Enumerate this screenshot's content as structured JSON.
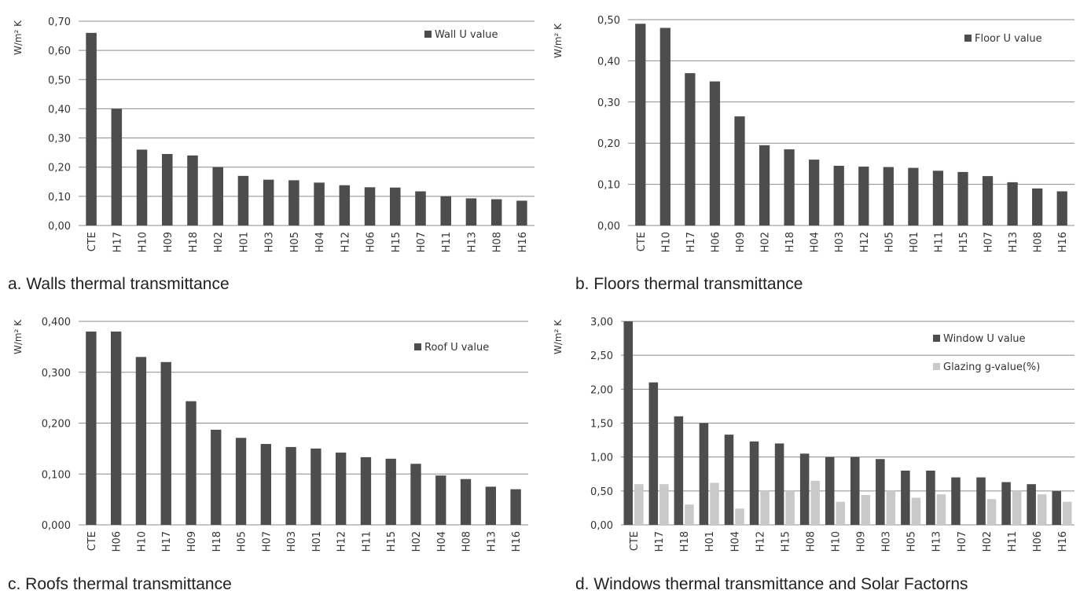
{
  "colors": {
    "primary": "#4d4d4d",
    "secondary": "#c9c9c9",
    "grid": "#8c8c8c",
    "axis": "#777777"
  },
  "chart_data": [
    {
      "type": "bar",
      "caption": "a. Walls thermal transmittance",
      "ylabel": "W/m² K",
      "ylim": [
        0,
        0.7
      ],
      "yticks": [
        "0,00",
        "0,10",
        "0,20",
        "0,30",
        "0,40",
        "0,50",
        "0,60",
        "0,70"
      ],
      "categories": [
        "CTE",
        "H17",
        "H10",
        "H09",
        "H18",
        "H02",
        "H01",
        "H03",
        "H05",
        "H04",
        "H12",
        "H06",
        "H15",
        "H07",
        "H11",
        "H13",
        "H08",
        "H16"
      ],
      "legend_position": "top-right",
      "series": [
        {
          "name": "Wall U value",
          "color": "#4d4d4d",
          "values": [
            0.66,
            0.4,
            0.26,
            0.245,
            0.24,
            0.2,
            0.17,
            0.157,
            0.155,
            0.147,
            0.138,
            0.131,
            0.13,
            0.117,
            0.1,
            0.093,
            0.09,
            0.085
          ]
        }
      ]
    },
    {
      "type": "bar",
      "caption": "b. Floors thermal transmittance",
      "ylabel": "W/m² K",
      "ylim": [
        0,
        0.5
      ],
      "yticks": [
        "0,00",
        "0,10",
        "0,20",
        "0,30",
        "0,40",
        "0,50"
      ],
      "categories": [
        "CTE",
        "H10",
        "H17",
        "H06",
        "H09",
        "H02",
        "H18",
        "H04",
        "H03",
        "H12",
        "H05",
        "H01",
        "H11",
        "H15",
        "H07",
        "H13",
        "H08",
        "H16"
      ],
      "legend_position": "top-right",
      "series": [
        {
          "name": "Floor U value",
          "color": "#4d4d4d",
          "values": [
            0.49,
            0.48,
            0.37,
            0.35,
            0.265,
            0.195,
            0.185,
            0.16,
            0.145,
            0.143,
            0.142,
            0.14,
            0.133,
            0.13,
            0.12,
            0.105,
            0.09,
            0.083
          ]
        }
      ]
    },
    {
      "type": "bar",
      "caption": "c. Roofs thermal transmittance",
      "ylabel": "W/m² K",
      "ylim": [
        0,
        0.4
      ],
      "yticks": [
        "0,000",
        "0,100",
        "0,200",
        "0,300",
        "0,400"
      ],
      "categories": [
        "CTE",
        "H06",
        "H10",
        "H17",
        "H09",
        "H18",
        "H05",
        "H07",
        "H03",
        "H01",
        "H12",
        "H11",
        "H15",
        "H02",
        "H04",
        "H08",
        "H13",
        "H16"
      ],
      "legend_position": "top-right",
      "series": [
        {
          "name": "Roof U value",
          "color": "#4d4d4d",
          "values": [
            0.38,
            0.38,
            0.33,
            0.32,
            0.243,
            0.187,
            0.171,
            0.159,
            0.153,
            0.15,
            0.142,
            0.133,
            0.13,
            0.12,
            0.097,
            0.09,
            0.075,
            0.07
          ]
        }
      ]
    },
    {
      "type": "bar",
      "caption": "d. Windows thermal transmittance and Solar Factorns",
      "ylabel": "W/m² K",
      "ylim": [
        0,
        3.0
      ],
      "yticks": [
        "0,00",
        "0,50",
        "1,00",
        "1,50",
        "2,00",
        "2,50",
        "3,00"
      ],
      "categories": [
        "CTE",
        "H17",
        "H18",
        "H01",
        "H04",
        "H12",
        "H15",
        "H08",
        "H10",
        "H09",
        "H03",
        "H05",
        "H13",
        "H07",
        "H02",
        "H11",
        "H06",
        "H16"
      ],
      "legend_position": "top-right",
      "series": [
        {
          "name": "Window U value",
          "color": "#4d4d4d",
          "values": [
            3.0,
            2.1,
            1.6,
            1.5,
            1.33,
            1.23,
            1.2,
            1.05,
            1.0,
            1.0,
            0.97,
            0.8,
            0.8,
            0.7,
            0.7,
            0.63,
            0.6,
            0.5
          ]
        },
        {
          "name": "Glazing  g-value(%)",
          "color": "#c9c9c9",
          "values": [
            0.6,
            0.6,
            0.3,
            0.62,
            0.24,
            0.5,
            0.5,
            0.65,
            0.34,
            0.44,
            0.5,
            0.4,
            0.45,
            0.0,
            0.38,
            0.5,
            0.45,
            0.34
          ]
        }
      ]
    }
  ]
}
